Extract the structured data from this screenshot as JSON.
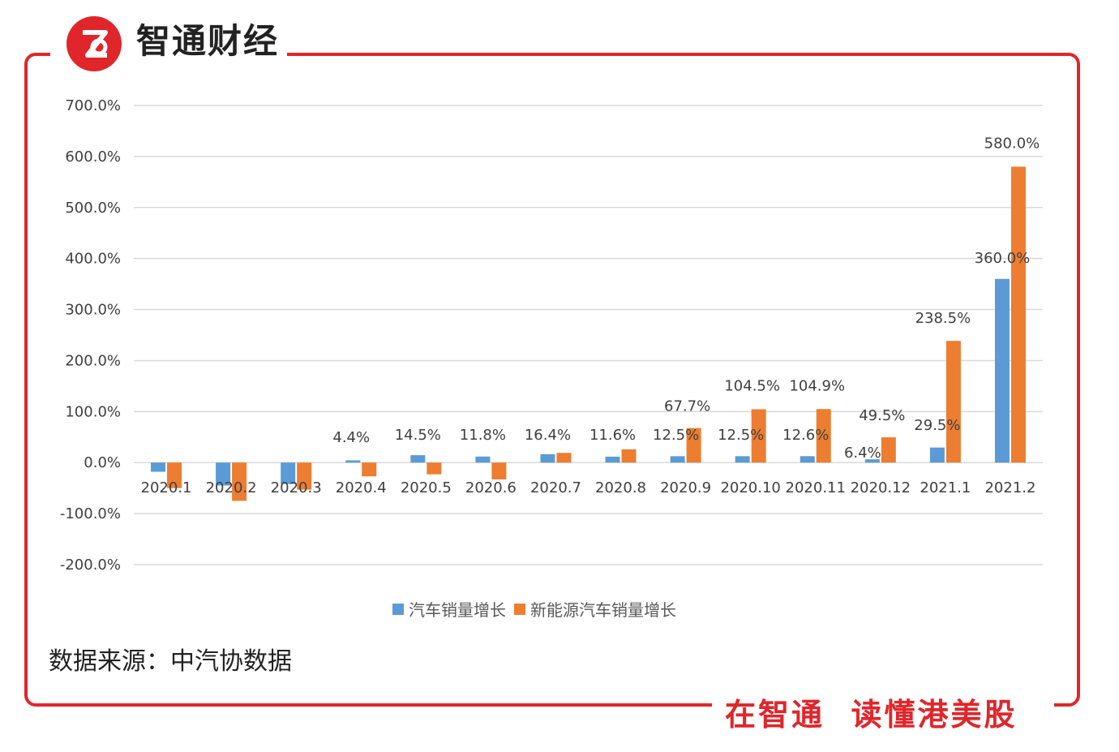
{
  "brand": {
    "name": "智通财经",
    "slogan": "在智通  读懂港美股",
    "color": "#e0262b"
  },
  "source_note": "数据来源：中汽协数据",
  "chart_data": {
    "type": "bar",
    "categories": [
      "2020.1",
      "2020.2",
      "2020.3",
      "2020.4",
      "2020.5",
      "2020.6",
      "2020.7",
      "2020.8",
      "2020.9",
      "2020.10",
      "2020.11",
      "2020.12",
      "2021.1",
      "2021.2"
    ],
    "series": [
      {
        "name": "汽车销量增长",
        "color": "#5b9bd5",
        "values": [
          -18.0,
          -45.0,
          -42.0,
          4.4,
          14.5,
          11.8,
          16.4,
          11.6,
          12.5,
          12.5,
          12.6,
          6.4,
          29.5,
          360.0
        ],
        "labels": [
          "",
          "",
          "",
          "4.4%",
          "14.5%",
          "11.8%",
          "16.4%",
          "11.6%",
          "12.5%",
          "12.5%",
          "12.6%",
          "6.4%",
          "29.5%",
          "360.0%"
        ]
      },
      {
        "name": "新能源汽车销量增长",
        "color": "#ed7d31",
        "values": [
          -50.0,
          -75.0,
          -53.0,
          -27.0,
          -23.0,
          -33.0,
          19.0,
          26.0,
          67.7,
          104.5,
          104.9,
          49.5,
          238.5,
          580.0
        ],
        "labels": [
          "",
          "",
          "",
          "",
          "",
          "",
          "",
          "",
          "67.7%",
          "104.5%",
          "104.9%",
          "49.5%",
          "238.5%",
          "580.0%"
        ]
      }
    ],
    "ylim": [
      -200,
      700
    ],
    "yticks": [
      "700.0%",
      "600.0%",
      "500.0%",
      "400.0%",
      "300.0%",
      "200.0%",
      "100.0%",
      "0.0%",
      "-100.0%",
      "-200.0%"
    ],
    "ytick_values": [
      700,
      600,
      500,
      400,
      300,
      200,
      100,
      0,
      -100,
      -200
    ],
    "grid": true,
    "legend_position": "bottom"
  }
}
